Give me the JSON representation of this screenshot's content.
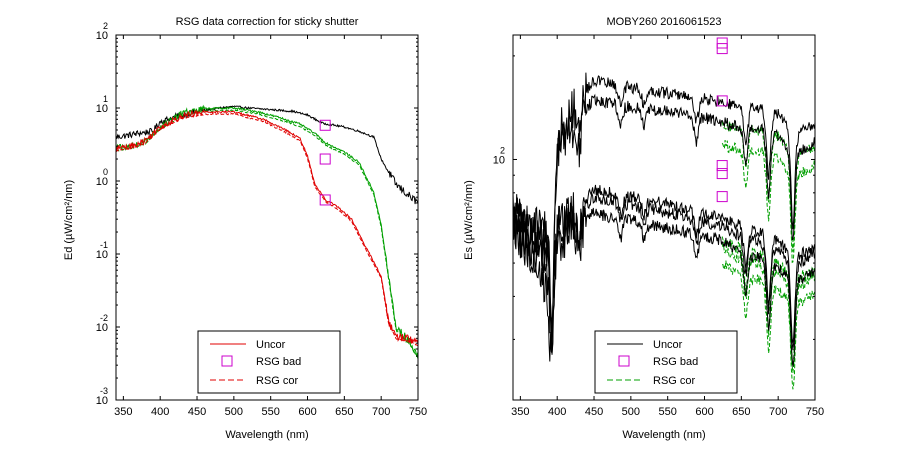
{
  "chart_data": [
    {
      "type": "line",
      "title": "RSG data correction for sticky shutter",
      "xlabel": "Wavelength (nm)",
      "ylabel": "Ed (µW/cm²/nm)",
      "y_scale": "log",
      "xlim": [
        340,
        750
      ],
      "ylim": [
        0.001,
        100
      ],
      "x_ticks": [
        350,
        400,
        450,
        500,
        550,
        600,
        650,
        700,
        750
      ],
      "y_ticks": [
        {
          "base": "10",
          "exp": "2",
          "value": 100
        },
        {
          "base": "10",
          "exp": "1",
          "value": 10
        },
        {
          "base": "10",
          "exp": "0",
          "value": 1
        },
        {
          "base": "10",
          "exp": "-1",
          "value": 0.1
        },
        {
          "base": "10",
          "exp": "-2",
          "value": 0.01
        },
        {
          "base": "10",
          "exp": "-3",
          "value": 0.001
        }
      ],
      "legend": {
        "placement": "bottom-center",
        "entries": [
          {
            "label": "Uncor",
            "style": "solid-line"
          },
          {
            "label": "RSG bad",
            "style": "square-marker"
          },
          {
            "label": "RSG cor",
            "style": "dashed-line"
          }
        ]
      },
      "colors": {
        "uncor": "#e00000",
        "rsg_bad": "#cc00cc",
        "rsg_cor": "#e00000"
      },
      "curve_colors": [
        "#000000",
        "#00a000",
        "#e00000"
      ],
      "series": [
        {
          "color": "#000000",
          "values": [
            [
              340,
              4.0
            ],
            [
              355,
              4.2
            ],
            [
              370,
              4.5
            ],
            [
              390,
              4.8
            ],
            [
              400,
              6.5
            ],
            [
              420,
              7.5
            ],
            [
              450,
              9.0
            ],
            [
              480,
              10.0
            ],
            [
              500,
              10.5
            ],
            [
              520,
              10.0
            ],
            [
              550,
              9.5
            ],
            [
              580,
              9.0
            ],
            [
              600,
              8.0
            ],
            [
              620,
              6.2
            ],
            [
              650,
              5.5
            ],
            [
              670,
              4.8
            ],
            [
              690,
              4.0
            ],
            [
              700,
              2.0
            ],
            [
              720,
              0.9
            ],
            [
              740,
              0.6
            ],
            [
              750,
              0.5
            ]
          ]
        },
        {
          "color": "#00a000",
          "values": [
            [
              340,
              2.8
            ],
            [
              360,
              3.0
            ],
            [
              380,
              3.5
            ],
            [
              400,
              5.5
            ],
            [
              430,
              8.5
            ],
            [
              460,
              9.8
            ],
            [
              500,
              10.0
            ],
            [
              530,
              9.0
            ],
            [
              560,
              7.5
            ],
            [
              590,
              6.0
            ],
            [
              610,
              4.5
            ],
            [
              625,
              3.3
            ],
            [
              650,
              2.5
            ],
            [
              670,
              1.8
            ],
            [
              690,
              0.7
            ],
            [
              700,
              0.25
            ],
            [
              710,
              0.05
            ],
            [
              720,
              0.01
            ],
            [
              740,
              0.006
            ],
            [
              750,
              0.004
            ]
          ]
        },
        {
          "color": "#e00000",
          "values": [
            [
              340,
              2.8
            ],
            [
              360,
              3.0
            ],
            [
              380,
              3.6
            ],
            [
              400,
              5.5
            ],
            [
              430,
              7.8
            ],
            [
              460,
              8.8
            ],
            [
              500,
              8.9
            ],
            [
              540,
              7.0
            ],
            [
              570,
              5.0
            ],
            [
              590,
              3.8
            ],
            [
              600,
              2.2
            ],
            [
              610,
              0.9
            ],
            [
              625,
              0.55
            ],
            [
              640,
              0.45
            ],
            [
              660,
              0.3
            ],
            [
              680,
              0.12
            ],
            [
              700,
              0.05
            ],
            [
              710,
              0.012
            ],
            [
              720,
              0.0075
            ],
            [
              740,
              0.0068
            ],
            [
              750,
              0.006
            ]
          ]
        }
      ],
      "rsg_bad_points": [
        [
          624,
          5.8
        ],
        [
          624,
          2.0
        ],
        [
          624,
          0.55
        ]
      ]
    },
    {
      "type": "line",
      "title": "MOBY260  2016061523",
      "xlabel": "Wavelength (nm)",
      "ylabel": "Es (µW/cm²/nm)",
      "y_scale": "log",
      "xlim": [
        340,
        750
      ],
      "ylim": [
        20,
        230
      ],
      "x_ticks": [
        350,
        400,
        450,
        500,
        550,
        600,
        650,
        700,
        750
      ],
      "y_ticks": [
        {
          "base": "10",
          "exp": "2",
          "value": 100
        }
      ],
      "legend": {
        "placement": "bottom-center",
        "entries": [
          {
            "label": "Uncor",
            "style": "solid-line"
          },
          {
            "label": "RSG bad",
            "style": "square-marker"
          },
          {
            "label": "RSG cor",
            "style": "dashed-line"
          }
        ]
      },
      "colors": {
        "uncor": "#000000",
        "rsg_bad": "#cc00cc",
        "rsg_cor": "#00a000"
      },
      "series": [
        {
          "values": [
            [
              340,
              75
            ],
            [
              360,
              62
            ],
            [
              380,
              52
            ],
            [
              390,
              46
            ],
            [
              400,
              118
            ],
            [
              430,
              150
            ],
            [
              450,
              170
            ],
            [
              470,
              166
            ],
            [
              500,
              162
            ],
            [
              550,
              156
            ],
            [
              600,
              150
            ],
            [
              624,
              146
            ],
            [
              650,
              142
            ],
            [
              680,
              140
            ],
            [
              700,
              135
            ],
            [
              720,
              118
            ],
            [
              750,
              128
            ]
          ]
        },
        {
          "values": [
            [
              340,
              65
            ],
            [
              360,
              54
            ],
            [
              380,
              45
            ],
            [
              390,
              40
            ],
            [
              400,
              106
            ],
            [
              430,
              132
            ],
            [
              450,
              150
            ],
            [
              470,
              146
            ],
            [
              500,
              142
            ],
            [
              550,
              138
            ],
            [
              600,
              132
            ],
            [
              624,
              128
            ],
            [
              650,
              124
            ],
            [
              680,
              122
            ],
            [
              700,
              118
            ],
            [
              720,
              104
            ],
            [
              750,
              112
            ]
          ]
        },
        {
          "values": [
            [
              340,
              72
            ],
            [
              360,
              66
            ],
            [
              380,
              62
            ],
            [
              400,
              65
            ],
            [
              430,
              74
            ],
            [
              450,
              82
            ],
            [
              470,
              80
            ],
            [
              500,
              78
            ],
            [
              550,
              74
            ],
            [
              600,
              70
            ],
            [
              624,
              68
            ],
            [
              650,
              64
            ],
            [
              680,
              61
            ],
            [
              700,
              58
            ],
            [
              720,
              52
            ],
            [
              750,
              56
            ]
          ]
        },
        {
          "values": [
            [
              340,
              68
            ],
            [
              360,
              62
            ],
            [
              380,
              58
            ],
            [
              400,
              61
            ],
            [
              430,
              70
            ],
            [
              450,
              78
            ],
            [
              470,
              76
            ],
            [
              500,
              74
            ],
            [
              550,
              70
            ],
            [
              600,
              66
            ],
            [
              624,
              64
            ],
            [
              650,
              60
            ],
            [
              680,
              57
            ],
            [
              700,
              55
            ],
            [
              720,
              49
            ],
            [
              750,
              53
            ]
          ]
        },
        {
          "values": [
            [
              340,
              62
            ],
            [
              360,
              56
            ],
            [
              380,
              53
            ],
            [
              400,
              56
            ],
            [
              430,
              64
            ],
            [
              450,
              70
            ],
            [
              470,
              68
            ],
            [
              500,
              67
            ],
            [
              550,
              63
            ],
            [
              600,
              60
            ],
            [
              624,
              58
            ],
            [
              650,
              54
            ],
            [
              680,
              51
            ],
            [
              700,
              49
            ],
            [
              720,
              44
            ],
            [
              750,
              47
            ]
          ]
        }
      ],
      "rsg_bad_points": [
        [
          624,
          218
        ],
        [
          624,
          210
        ],
        [
          624,
          148
        ],
        [
          624,
          96
        ],
        [
          624,
          91
        ],
        [
          624,
          78
        ]
      ]
    }
  ]
}
